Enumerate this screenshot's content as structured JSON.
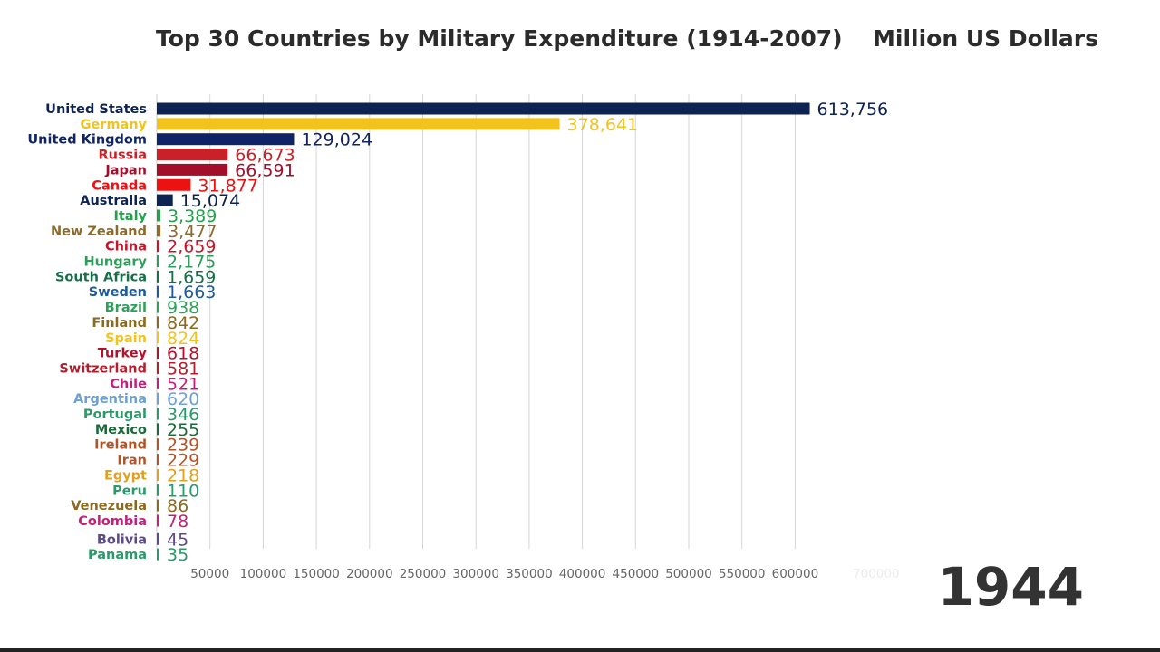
{
  "header": {
    "title": "Top 30 Countries by Military Expenditure (1914-2007)",
    "unit": "Million US Dollars",
    "year": "1944"
  },
  "chart_data": {
    "type": "bar",
    "orientation": "horizontal",
    "title": "Top 30 Countries by Military Expenditure (1914-2007)",
    "unit": "Million US Dollars",
    "year": "1944",
    "xlim": [
      0,
      700000
    ],
    "xticks": [
      50000,
      100000,
      150000,
      200000,
      250000,
      300000,
      350000,
      400000,
      450000,
      500000,
      550000,
      600000
    ],
    "xtick_labels": [
      "50000",
      "100000",
      "150000",
      "200000",
      "250000",
      "300000",
      "350000",
      "400000",
      "450000",
      "500000",
      "550000",
      "600000"
    ],
    "faded_tick_label": "700000",
    "faded_tick_value": 700000,
    "grid": true,
    "categories": [
      "United States",
      "Germany",
      "United Kingdom",
      "Russia",
      "Japan",
      "Canada",
      "Australia",
      "Italy",
      "New Zealand",
      "China",
      "Hungary",
      "South Africa",
      "Sweden",
      "Brazil",
      "Finland",
      "Spain",
      "Turkey",
      "Switzerland",
      "Chile",
      "Argentina",
      "Portugal",
      "Mexico",
      "Ireland",
      "Iran",
      "Egypt",
      "Peru",
      "Venezuela",
      "Colombia",
      "Bolivia",
      "Panama"
    ],
    "values": [
      613756,
      378641,
      129024,
      66673,
      66591,
      31877,
      15074,
      3389,
      3477,
      2659,
      2175,
      1659,
      1663,
      938,
      842,
      824,
      618,
      581,
      521,
      620,
      346,
      255,
      239,
      229,
      218,
      110,
      86,
      78,
      45,
      35
    ],
    "value_labels": [
      "613,756",
      "378,641",
      "129,024",
      "66,673",
      "66,591",
      "31,877",
      "15,074",
      "3,389",
      "3,477",
      "2,659",
      "2,175",
      "1,659",
      "1,663",
      "938",
      "842",
      "824",
      "618",
      "581",
      "521",
      "620",
      "346",
      "255",
      "239",
      "229",
      "218",
      "110",
      "86",
      "78",
      "45",
      "35"
    ],
    "colors": [
      "#0d2352",
      "#f2c31c",
      "#0f2466",
      "#c82127",
      "#a10f2b",
      "#ee1111",
      "#0d2352",
      "#22a14a",
      "#8c6a2b",
      "#c4172c",
      "#2e9c5a",
      "#176f4a",
      "#1e5a9b",
      "#2da05a",
      "#8a6a20",
      "#f2c31c",
      "#b3122d",
      "#b11f2f",
      "#c41f7a",
      "#6fa0cf",
      "#2a9a6a",
      "#1a6a3a",
      "#b0552a",
      "#b0552a",
      "#e0a020",
      "#2a9a6a",
      "#8a6a20",
      "#c41f7a",
      "#5a4a8a",
      "#2a9a6a"
    ]
  }
}
